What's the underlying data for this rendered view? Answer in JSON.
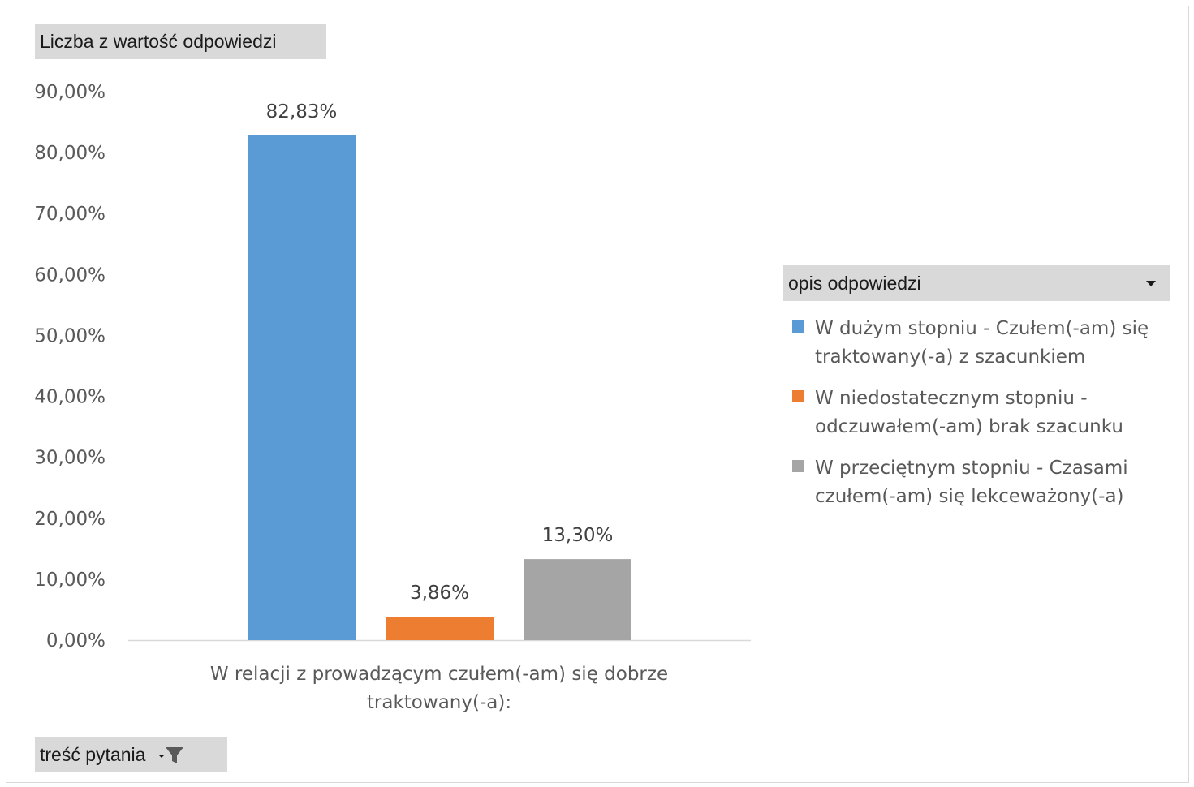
{
  "field_buttons": {
    "values": "Liczba z wartość odpowiedzi",
    "axis": "treść pytania",
    "legend": "opis odpowiedzi"
  },
  "icons": {
    "legend_dropdown": "chevron-down-icon",
    "axis_filter": "filter-icon"
  },
  "chart_data": {
    "type": "bar",
    "categories": [
      "W relacji z prowadzącym czułem(-am) się dobrze traktowany(-a):"
    ],
    "category_label_lines": [
      "W relacji z prowadzącym czułem(-am) się dobrze",
      "traktowany(-a):"
    ],
    "series": [
      {
        "name": "W dużym stopniu - Czułem(-am) się traktowany(-a) z szacunkiem",
        "values": [
          82.83
        ],
        "label": "82,83%",
        "color": "#5b9bd5"
      },
      {
        "name": "W niedostatecznym stopniu - odczuwałem(-am) brak szacunku",
        "values": [
          3.86
        ],
        "label": "3,86%",
        "color": "#ed7d31"
      },
      {
        "name": "W przeciętnym stopniu - Czasami czułem(-am) się lekceważony(-a)",
        "values": [
          13.3
        ],
        "label": "13,30%",
        "color": "#a5a5a5"
      }
    ],
    "legend_lines": [
      [
        "W dużym stopniu - Czułem(-am) się",
        "traktowany(-a) z szacunkiem"
      ],
      [
        "W niedostatecznym stopniu -",
        "odczuwałem(-am) brak szacunku"
      ],
      [
        "W przeciętnym stopniu - Czasami",
        "czułem(-am) się lekceważony(-a)"
      ]
    ],
    "ylim": [
      0,
      90
    ],
    "yticks": [
      0,
      10,
      20,
      30,
      40,
      50,
      60,
      70,
      80,
      90
    ],
    "ytick_labels": [
      "0,00%",
      "10,00%",
      "20,00%",
      "30,00%",
      "40,00%",
      "50,00%",
      "60,00%",
      "70,00%",
      "80,00%",
      "90,00%"
    ],
    "grid": false,
    "legend_position": "right"
  }
}
